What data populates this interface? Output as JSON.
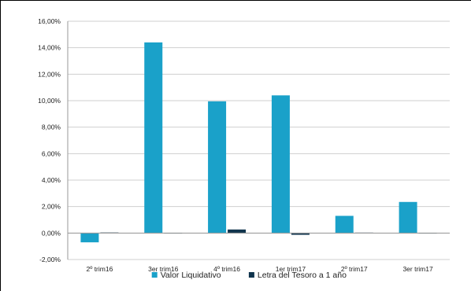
{
  "chart_data": {
    "type": "bar",
    "title": "",
    "xlabel": "",
    "ylabel": "",
    "categories": [
      "2º trim16",
      "3er trim16",
      "4º trim16",
      "1er trim17",
      "2º trim17",
      "3er trim17"
    ],
    "series": [
      {
        "name": "Valor Liquidativo",
        "color": "#1aa1c9",
        "values": [
          -0.7,
          14.4,
          9.95,
          10.4,
          1.3,
          2.35
        ]
      },
      {
        "name": "Letra del Tesoro a 1 año",
        "color": "#10344d",
        "values": [
          0.04,
          -0.02,
          0.27,
          -0.13,
          0.03,
          0.0
        ]
      }
    ],
    "ylim": [
      -2,
      16
    ],
    "yticks": [
      -2,
      0,
      2,
      4,
      6,
      8,
      10,
      12,
      14,
      16
    ],
    "ytick_labels": [
      "-2,00%",
      "0,00%",
      "2,00%",
      "4,00%",
      "6,00%",
      "8,00%",
      "10,00%",
      "12,00%",
      "14,00%",
      "16,00%"
    ],
    "grid": true,
    "legend_position": "bottom"
  }
}
